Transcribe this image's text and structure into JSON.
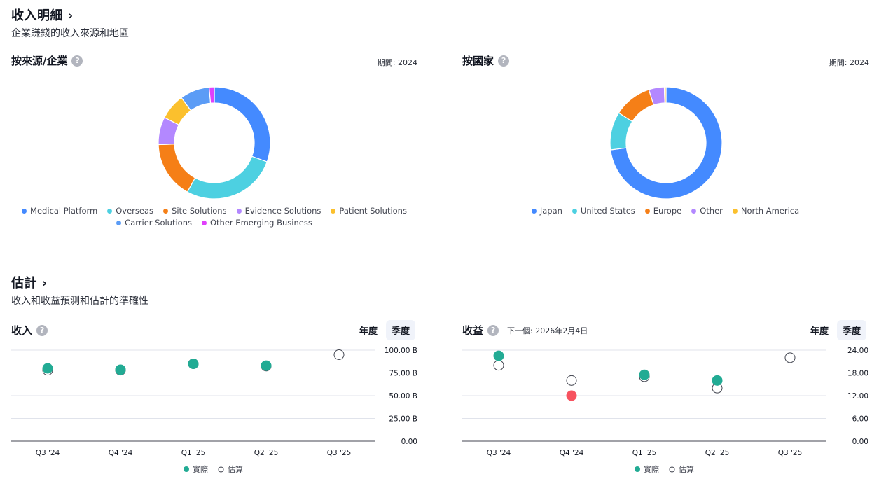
{
  "revenue_breakdown": {
    "title": "收入明細",
    "subtitle": "企業賺錢的收入來源和地區"
  },
  "estimates": {
    "title": "估計",
    "subtitle": "收入和收益預測和估計的準確性"
  },
  "toggle": {
    "annual": "年度",
    "quarterly": "季度"
  },
  "legend_actual": "實際",
  "legend_estimate": "估算",
  "colors": {
    "actual": "#22ab94",
    "actual_miss": "#f7525f",
    "estimate_stroke": "#434651"
  },
  "chart_data": [
    {
      "type": "pie",
      "title": "按來源/企業",
      "period": "期間: 2024",
      "slices": [
        {
          "name": "Medical Platform",
          "value": 30.5,
          "color": "#448aff"
        },
        {
          "name": "Overseas",
          "value": 27.5,
          "color": "#4dd0e1"
        },
        {
          "name": "Site Solutions",
          "value": 16.5,
          "color": "#f57f17"
        },
        {
          "name": "Evidence Solutions",
          "value": 8.0,
          "color": "#b388ff"
        },
        {
          "name": "Patient Solutions",
          "value": 7.5,
          "color": "#fbc02d"
        },
        {
          "name": "Carrier Solutions",
          "value": 8.5,
          "color": "#5b9cf6"
        },
        {
          "name": "Other Emerging Business",
          "value": 1.5,
          "color": "#e040fb"
        }
      ]
    },
    {
      "type": "pie",
      "title": "按國家",
      "period": "期間: 2024",
      "slices": [
        {
          "name": "Japan",
          "value": 73.0,
          "color": "#448aff"
        },
        {
          "name": "United States",
          "value": 11.0,
          "color": "#4dd0e1"
        },
        {
          "name": "Europe",
          "value": 11.0,
          "color": "#f57f17"
        },
        {
          "name": "Other",
          "value": 4.5,
          "color": "#b388ff"
        },
        {
          "name": "North America",
          "value": 0.5,
          "color": "#fbc02d"
        }
      ]
    },
    {
      "type": "scatter",
      "title": "收入",
      "categories": [
        "Q3 '24",
        "Q4 '24",
        "Q1 '25",
        "Q2 '25",
        "Q3 '25"
      ],
      "ylim": [
        0,
        100
      ],
      "yticks": [
        "0.00",
        "25.00 B",
        "50.00 B",
        "75.00 B",
        "100.00 B"
      ],
      "series": [
        {
          "name": "實際",
          "values": [
            80,
            78.5,
            85,
            83,
            null
          ]
        },
        {
          "name": "估算",
          "values": [
            78,
            78,
            85,
            82.5,
            95
          ]
        }
      ]
    },
    {
      "type": "scatter",
      "title": "收益",
      "next": "下一個: 2026年2月4日",
      "categories": [
        "Q3 '24",
        "Q4 '24",
        "Q1 '25",
        "Q2 '25",
        "Q3 '25"
      ],
      "ylim": [
        0,
        24
      ],
      "yticks": [
        "0.00",
        "6.00",
        "12.00",
        "18.00",
        "24.00"
      ],
      "series": [
        {
          "name": "實際",
          "values": [
            22.5,
            12,
            17.5,
            16,
            null
          ]
        },
        {
          "name": "估算",
          "values": [
            20,
            16,
            17,
            14,
            22
          ]
        }
      ]
    }
  ]
}
